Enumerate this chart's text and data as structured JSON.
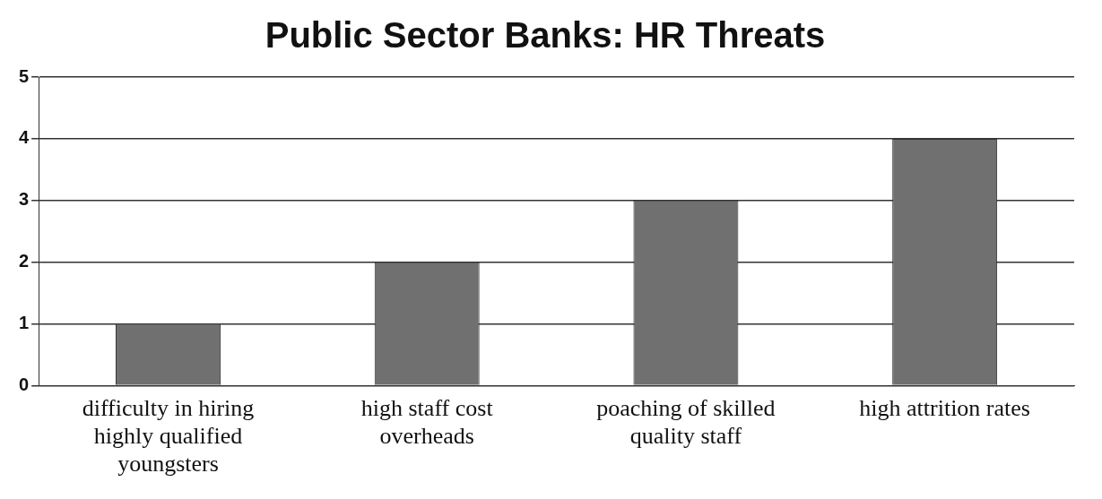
{
  "chart_data": {
    "type": "bar",
    "title": "Public Sector Banks: HR Threats",
    "categories": [
      "difficulty in hiring highly qualified youngsters",
      "high staff cost overheads",
      "poaching of skilled quality staff",
      "high attrition rates"
    ],
    "values": [
      1,
      2,
      3,
      4
    ],
    "color": "#707070",
    "ylim": [
      0,
      5
    ],
    "yticks": [
      0,
      1,
      2,
      3,
      4,
      5
    ],
    "grid": "y",
    "legend": false
  }
}
